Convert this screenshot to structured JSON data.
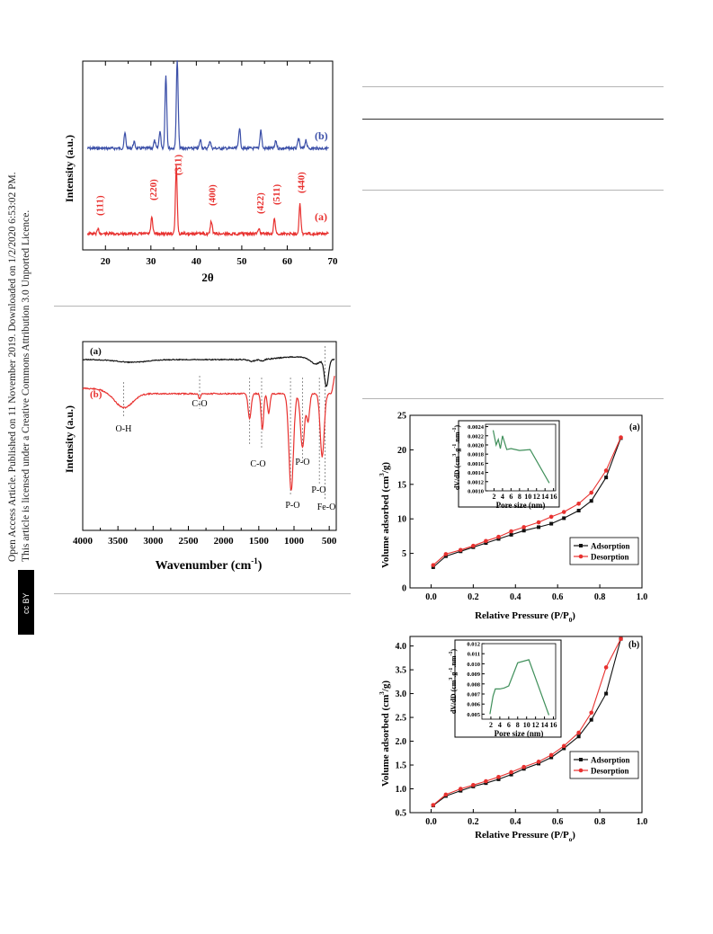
{
  "sidebar": {
    "line1": "Open Access Article. Published on 11 November 2019. Downloaded on 1/2/2020 6:53:02 PM.",
    "line2": "This article is licensed under a Creative Commons Attribution 3.0 Unported Licence.",
    "license_badge": "cc BY"
  },
  "chart_data": [
    {
      "type": "line",
      "xlabel": "2θ",
      "ylabel": "Intensity (a.u.)",
      "xlim": [
        15,
        70
      ],
      "xticks": [
        20,
        30,
        40,
        50,
        60,
        70
      ],
      "colors": {
        "a": "#e8312f",
        "b": "#3b4fa8"
      },
      "series": [
        {
          "name": "(a)",
          "color": "#e8312f",
          "peaks": [
            [
              18.4,
              0.04
            ],
            [
              30.2,
              0.15
            ],
            [
              35.6,
              0.62
            ],
            [
              43.3,
              0.12
            ],
            [
              53.8,
              0.05
            ],
            [
              57.2,
              0.14
            ],
            [
              62.8,
              0.28
            ]
          ]
        },
        {
          "name": "(b)",
          "color": "#3b4fa8",
          "peaks": [
            [
              24.3,
              0.14
            ],
            [
              26.3,
              0.06
            ],
            [
              30.8,
              0.07
            ],
            [
              32.0,
              0.16
            ],
            [
              33.3,
              0.68
            ],
            [
              35.8,
              0.82
            ],
            [
              40.9,
              0.08
            ],
            [
              43.0,
              0.07
            ],
            [
              49.5,
              0.19
            ],
            [
              54.2,
              0.17
            ],
            [
              57.5,
              0.07
            ],
            [
              62.5,
              0.09
            ],
            [
              64.1,
              0.08
            ]
          ]
        }
      ],
      "annotations": [
        "(111)",
        "(220)",
        "(311)",
        "(400)",
        "(422)",
        "(511)",
        "(440)"
      ]
    },
    {
      "type": "line",
      "xlabel": "Wavenumber (cm",
      "xlabel_sup": "-1",
      "xlabel_end": ")",
      "ylabel": "Intensity (a.u.)",
      "xlim": [
        4000,
        400
      ],
      "xticks": [
        4000,
        3500,
        3000,
        2500,
        2000,
        1500,
        1000,
        500
      ],
      "colors": {
        "a": "#111111",
        "b": "#e8312f"
      },
      "series": [
        {
          "name": "(a)",
          "color": "#111111"
        },
        {
          "name": "(b)",
          "color": "#e8312f"
        }
      ],
      "annotations": [
        "O-H",
        "C-O",
        "C-O",
        "P-O",
        "P-O",
        "P-O",
        "Fe-O"
      ]
    },
    {
      "type": "line",
      "panel": "(a)",
      "xlabel": "Relative Pressure (P/P",
      "xlabel_sub": "0",
      "xlabel_end": ")",
      "ylabel": "Volume adsorbed (cm",
      "ylabel_sup": "3",
      "ylabel_end": "/g)",
      "xlim": [
        -0.1,
        1.0
      ],
      "ylim": [
        0,
        25
      ],
      "xticks": [
        "0.0",
        "0.2",
        "0.4",
        "0.6",
        "0.8",
        "1.0"
      ],
      "yticks": [
        "0",
        "5",
        "10",
        "15",
        "20",
        "25"
      ],
      "series": [
        {
          "name": "Adsorption",
          "color": "#111111",
          "x": [
            0.01,
            0.07,
            0.14,
            0.2,
            0.26,
            0.32,
            0.38,
            0.44,
            0.51,
            0.57,
            0.63,
            0.7,
            0.76,
            0.83,
            0.9
          ],
          "y": [
            3.0,
            4.6,
            5.3,
            5.9,
            6.5,
            7.1,
            7.7,
            8.3,
            8.8,
            9.3,
            10.1,
            11.2,
            12.6,
            16.0,
            21.7
          ]
        },
        {
          "name": "Desorption",
          "color": "#e8312f",
          "x": [
            0.01,
            0.07,
            0.14,
            0.2,
            0.26,
            0.32,
            0.38,
            0.44,
            0.51,
            0.57,
            0.63,
            0.7,
            0.76,
            0.83,
            0.9
          ],
          "y": [
            3.3,
            4.9,
            5.5,
            6.1,
            6.8,
            7.4,
            8.2,
            8.8,
            9.5,
            10.3,
            11.0,
            12.2,
            13.8,
            17.0,
            21.8
          ]
        }
      ],
      "inset": {
        "xlabel": "Pore size (nm)",
        "ylabel": "dV/dD (cm",
        "ylabel_sup": "3",
        "ylabel_mid": ".g",
        "ylabel_sup2": "-1",
        "ylabel_mid2": ".nm",
        "ylabel_sup3": "-1",
        "ylabel_end": ")",
        "xlim": [
          0,
          16.5
        ],
        "ylim": [
          0.001,
          0.00245
        ],
        "xticks": [
          "2",
          "4",
          "6",
          "8",
          "10",
          "12",
          "14",
          "16"
        ],
        "yticks": [
          "0.0010",
          "0.0012",
          "0.0014",
          "0.0016",
          "0.0018",
          "0.0020",
          "0.0022",
          "0.0024"
        ],
        "color": "#3f8f5a",
        "x": [
          1.8,
          2.5,
          3.0,
          3.5,
          4.0,
          5.0,
          6.0,
          8.0,
          10.5,
          15.0
        ],
        "y": [
          0.00232,
          0.002,
          0.00212,
          0.00192,
          0.0022,
          0.0019,
          0.00192,
          0.00188,
          0.0019,
          0.00117
        ]
      }
    },
    {
      "type": "line",
      "panel": "(b)",
      "xlabel": "Relative Pressure (P/P",
      "xlabel_sub": "o",
      "xlabel_end": ")",
      "ylabel": "Volume adsorbed (cm",
      "ylabel_sup": "3",
      "ylabel_end": "/g)",
      "xlim": [
        -0.1,
        1.0
      ],
      "ylim": [
        0.5,
        4.2
      ],
      "xticks": [
        "0.0",
        "0.2",
        "0.4",
        "0.6",
        "0.8",
        "1.0"
      ],
      "yticks": [
        "0.5",
        "1.0",
        "1.5",
        "2.0",
        "2.5",
        "3.0",
        "3.5",
        "4.0"
      ],
      "series": [
        {
          "name": "Adsorption",
          "color": "#111111",
          "x": [
            0.01,
            0.07,
            0.14,
            0.2,
            0.26,
            0.32,
            0.38,
            0.44,
            0.51,
            0.57,
            0.63,
            0.7,
            0.76,
            0.83,
            0.9
          ],
          "y": [
            0.65,
            0.85,
            0.96,
            1.05,
            1.12,
            1.2,
            1.3,
            1.42,
            1.53,
            1.66,
            1.85,
            2.1,
            2.45,
            3.0,
            4.15
          ]
        },
        {
          "name": "Desorption",
          "color": "#e8312f",
          "x": [
            0.01,
            0.07,
            0.14,
            0.2,
            0.26,
            0.32,
            0.38,
            0.44,
            0.51,
            0.57,
            0.63,
            0.7,
            0.76,
            0.83,
            0.9
          ],
          "y": [
            0.66,
            0.88,
            1.0,
            1.08,
            1.16,
            1.25,
            1.35,
            1.46,
            1.57,
            1.71,
            1.9,
            2.18,
            2.6,
            3.55,
            4.15
          ]
        }
      ],
      "inset": {
        "xlabel": "Pore size (nm)",
        "ylabel": "dV/dD (cm",
        "ylabel_sup": "3",
        "ylabel_mid": ".g",
        "ylabel_sup2": "-1",
        "ylabel_mid2": ".nm",
        "ylabel_sup3": "-1",
        "ylabel_end": ")",
        "xlim": [
          0,
          16.5
        ],
        "ylim": [
          0.0045,
          0.012
        ],
        "xticks": [
          "2",
          "4",
          "6",
          "8",
          "10",
          "12",
          "14",
          "16"
        ],
        "yticks": [
          "0.005",
          "0.006",
          "0.007",
          "0.008",
          "0.009",
          "0.010",
          "0.011",
          "0.012"
        ],
        "color": "#3f8f5a",
        "x": [
          1.8,
          2.5,
          3.0,
          4.0,
          5.0,
          6.0,
          8.0,
          10.5,
          15.0
        ],
        "y": [
          0.005,
          0.0068,
          0.0075,
          0.0075,
          0.0076,
          0.0078,
          0.0101,
          0.0104,
          0.0049
        ]
      }
    }
  ]
}
